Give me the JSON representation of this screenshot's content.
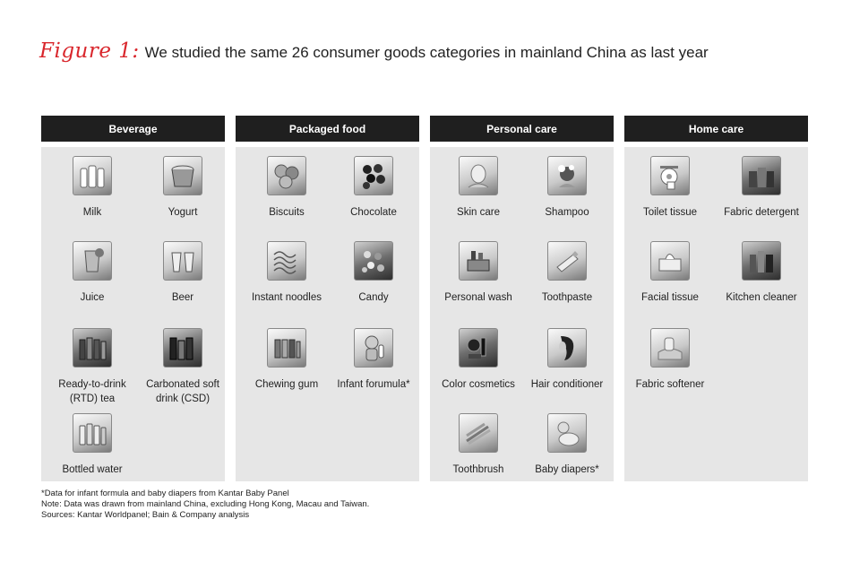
{
  "title": {
    "figure_label": "Figure 1:",
    "text": "We studied the same 26 consumer goods categories in mainland China as last year"
  },
  "columns": [
    {
      "header": "Beverage",
      "items": [
        {
          "label": "Milk",
          "icon": "milk-bottles-icon"
        },
        {
          "label": "Yogurt",
          "icon": "yogurt-cup-icon"
        },
        {
          "label": "Juice",
          "icon": "juice-glass-icon"
        },
        {
          "label": "Beer",
          "icon": "beer-glasses-icon"
        },
        {
          "label": "Ready-to-drink (RTD) tea",
          "icon": "tea-bottles-icon"
        },
        {
          "label": "Carbonated soft drink (CSD)",
          "icon": "soda-bottles-icon"
        },
        {
          "label": "Bottled water",
          "icon": "water-bottles-icon"
        }
      ]
    },
    {
      "header": "Packaged food",
      "items": [
        {
          "label": "Biscuits",
          "icon": "biscuits-icon"
        },
        {
          "label": "Chocolate",
          "icon": "chocolate-icon"
        },
        {
          "label": "Instant noodles",
          "icon": "noodles-icon"
        },
        {
          "label": "Candy",
          "icon": "candy-icon"
        },
        {
          "label": "Chewing gum",
          "icon": "chewing-gum-icon"
        },
        {
          "label": "Infant forumula*",
          "icon": "baby-bottle-icon"
        }
      ]
    },
    {
      "header": "Personal care",
      "items": [
        {
          "label": "Skin care",
          "icon": "skin-care-icon"
        },
        {
          "label": "Shampoo",
          "icon": "shampoo-icon"
        },
        {
          "label": "Personal wash",
          "icon": "personal-wash-icon"
        },
        {
          "label": "Toothpaste",
          "icon": "toothpaste-icon"
        },
        {
          "label": "Color cosmetics",
          "icon": "cosmetics-icon"
        },
        {
          "label": "Hair conditioner",
          "icon": "hair-icon"
        },
        {
          "label": "Toothbrush",
          "icon": "toothbrush-icon"
        },
        {
          "label": "Baby diapers*",
          "icon": "baby-icon"
        }
      ]
    },
    {
      "header": "Home care",
      "items": [
        {
          "label": "Toilet tissue",
          "icon": "toilet-tissue-icon"
        },
        {
          "label": "Fabric detergent",
          "icon": "detergent-icon"
        },
        {
          "label": "Facial tissue",
          "icon": "facial-tissue-icon"
        },
        {
          "label": "Kitchen cleaner",
          "icon": "kitchen-cleaner-icon"
        },
        {
          "label": "Fabric softener",
          "icon": "fabric-softener-icon"
        }
      ]
    }
  ],
  "notes": [
    "*Data for infant formula and baby diapers from Kantar Baby Panel",
    "Note: Data was drawn from mainland China, excluding Hong Kong, Macau and Taiwan.",
    "Sources: Kantar Worldpanel; Bain & Company analysis"
  ]
}
